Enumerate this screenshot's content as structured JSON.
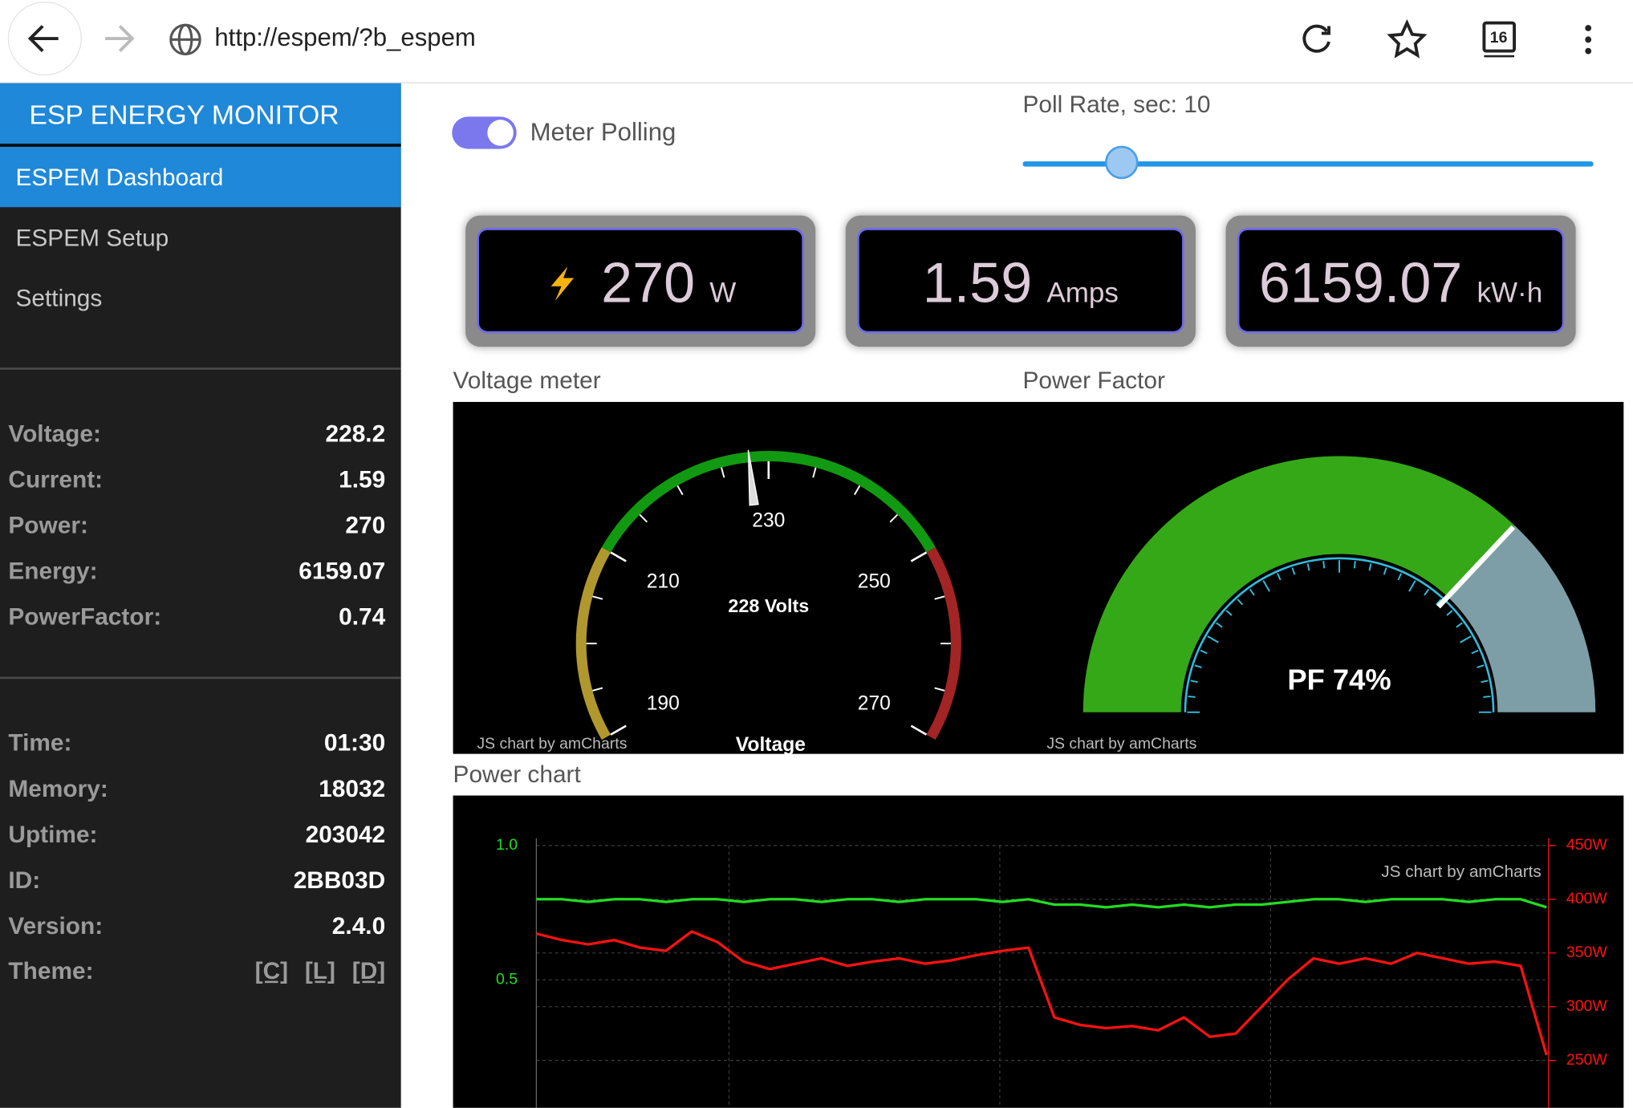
{
  "browser": {
    "url": "http://espem/?b_espem",
    "tabs": "16"
  },
  "sidebar": {
    "title": "ESP ENERGY MONITOR",
    "nav": [
      "ESPEM Dashboard",
      "ESPEM Setup",
      "Settings"
    ],
    "meter": [
      {
        "label": "Voltage:",
        "value": "228.2"
      },
      {
        "label": "Current:",
        "value": "1.59"
      },
      {
        "label": "Power:",
        "value": "270"
      },
      {
        "label": "Energy:",
        "value": "6159.07"
      },
      {
        "label": "PowerFactor:",
        "value": "0.74"
      }
    ],
    "system": [
      {
        "label": "Time:",
        "value": "01:30"
      },
      {
        "label": "Memory:",
        "value": "18032"
      },
      {
        "label": "Uptime:",
        "value": "203042"
      },
      {
        "label": "ID:",
        "value": "2BB03D"
      },
      {
        "label": "Version:",
        "value": "2.4.0"
      }
    ],
    "theme": {
      "label": "Theme:",
      "options": [
        "[C]",
        "[L]",
        "[D]"
      ]
    }
  },
  "controls": {
    "polling": "Meter Polling",
    "poll_rate": "Poll Rate, sec: 10"
  },
  "cards": [
    {
      "value": "270",
      "unit": "W"
    },
    {
      "value": "1.59",
      "unit": "Amps"
    },
    {
      "value": "6159.07",
      "unit": "kW·h"
    }
  ],
  "chart_data": [
    {
      "type": "gauge",
      "title": "Voltage meter",
      "range": [
        190,
        270
      ],
      "ticks": [
        190,
        210,
        230,
        250,
        270
      ],
      "value": 228,
      "value_label": "228 Volts",
      "label": "Voltage",
      "credit": "JS chart by amCharts",
      "bands": [
        {
          "from": 190,
          "to": 210,
          "color": "#b0982e"
        },
        {
          "from": 210,
          "to": 250,
          "color": "#119a11"
        },
        {
          "from": 250,
          "to": 270,
          "color": "#a32424"
        }
      ]
    },
    {
      "type": "solid_gauge",
      "title": "Power Factor",
      "range": [
        0,
        100
      ],
      "value": 74,
      "value_label": "PF 74%",
      "credit": "JS chart by amCharts",
      "color": "#35a818",
      "track_color": "#7d9ea6"
    },
    {
      "type": "line",
      "title": "Power chart",
      "credit": "JS chart by amCharts",
      "ylim": [
        0,
        1
      ],
      "yticks": [
        {
          "value": 1,
          "label": "1.0"
        },
        0.5
      ],
      "y2lim": [
        200,
        450
      ],
      "y2ticks": [
        {
          "value": 450,
          "label": "450W"
        },
        {
          "value": 400,
          "label": "400W"
        },
        {
          "value": 350,
          "label": "350W"
        },
        {
          "value": 300,
          "label": "300W"
        },
        {
          "value": 250,
          "label": "250W"
        }
      ],
      "series": [
        {
          "color": "#22dd22",
          "values": [
            0.8,
            0.8,
            0.79,
            0.8,
            0.8,
            0.79,
            0.8,
            0.8,
            0.79,
            0.8,
            0.8,
            0.79,
            0.8,
            0.8,
            0.79,
            0.8,
            0.8,
            0.8,
            0.79,
            0.8,
            0.78,
            0.78,
            0.77,
            0.78,
            0.77,
            0.78,
            0.77,
            0.78,
            0.78,
            0.79,
            0.8,
            0.8,
            0.79,
            0.8,
            0.8,
            0.8,
            0.79,
            0.8,
            0.8,
            0.77
          ]
        },
        {
          "color": "#ff1111",
          "axis": "y2",
          "values": [
            368,
            362,
            358,
            362,
            355,
            352,
            370,
            360,
            342,
            335,
            340,
            345,
            338,
            342,
            345,
            340,
            343,
            348,
            352,
            355,
            290,
            283,
            280,
            282,
            278,
            290,
            272,
            275,
            300,
            325,
            345,
            340,
            345,
            340,
            350,
            345,
            340,
            342,
            338,
            255
          ]
        }
      ]
    }
  ]
}
